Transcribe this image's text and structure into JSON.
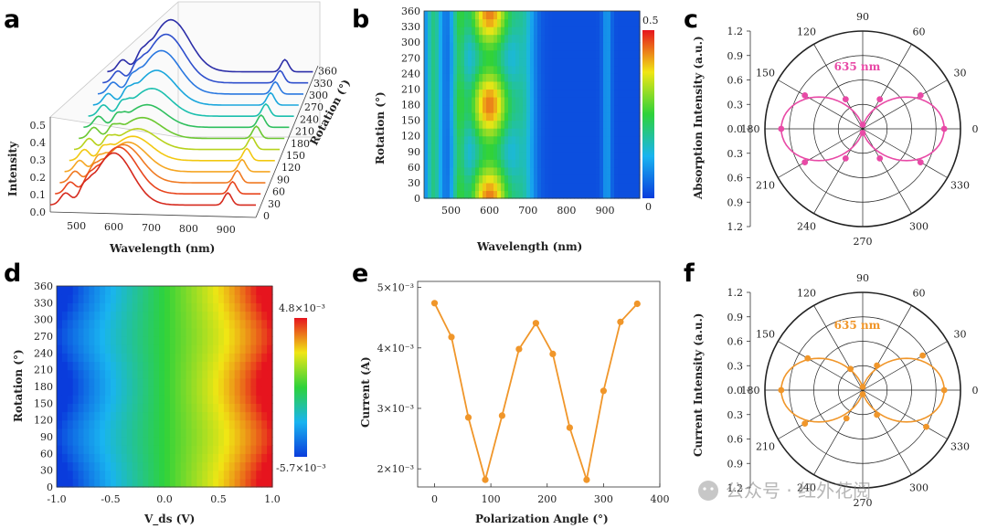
{
  "figure": {
    "panel_labels": [
      "a",
      "b",
      "c",
      "d",
      "e",
      "f"
    ],
    "watermark": "公众号 · 红外花阅"
  },
  "chart_data": [
    {
      "panel": "a",
      "type": "line",
      "xlabel": "Wavelength (nm)",
      "ylabel": "Intensity",
      "zlabel": "Rotation (°)",
      "xticks": [
        500,
        600,
        700,
        800,
        900
      ],
      "yticks": [
        "0.0",
        "0.1",
        "0.2",
        "0.3",
        "0.4",
        "0.5"
      ],
      "zticks": [
        0,
        30,
        60,
        90,
        120,
        150,
        180,
        210,
        240,
        270,
        300,
        330,
        360
      ],
      "xlim": [
        430,
        980
      ],
      "ylim": [
        0,
        0.5
      ],
      "series_rotations": [
        0,
        30,
        60,
        90,
        120,
        150,
        180,
        210,
        240,
        270,
        300,
        330,
        360
      ],
      "series_colors": [
        "#d62a1e",
        "#e8461e",
        "#f07a22",
        "#f5a623",
        "#f2c811",
        "#b7d21c",
        "#6cc832",
        "#2fbf5e",
        "#1bbfae",
        "#1aa6dc",
        "#2a78e0",
        "#2f4fcc",
        "#2c2ea8"
      ],
      "peak_intensity": [
        0.3,
        0.27,
        0.22,
        0.17,
        0.14,
        0.12,
        0.12,
        0.13,
        0.16,
        0.2,
        0.25,
        0.28,
        0.3
      ]
    },
    {
      "panel": "b",
      "type": "heatmap",
      "xlabel": "Wavelength (nm)",
      "ylabel": "Rotation (°)",
      "xticks": [
        500,
        600,
        700,
        800,
        900
      ],
      "yticks": [
        0,
        30,
        60,
        90,
        120,
        150,
        180,
        210,
        240,
        270,
        300,
        330,
        360
      ],
      "xlim": [
        430,
        990
      ],
      "ylim": [
        0,
        360
      ],
      "colorbar": {
        "min": "0",
        "max": "0.5"
      }
    },
    {
      "panel": "c",
      "type": "polar",
      "ylabel": "Absorption Intensity (a.u.)",
      "annotation": "635 nm",
      "angle_ticks": [
        0,
        30,
        60,
        90,
        120,
        150,
        180,
        210,
        240,
        270,
        300,
        330
      ],
      "radial_ticks": [
        "1.2",
        "0.9",
        "0.6",
        "0.3",
        "0.0",
        "0.3",
        "0.6",
        "0.9",
        "1.2"
      ],
      "rlim": [
        0,
        1.2
      ],
      "color": "#e84aa6",
      "angles": [
        0,
        30,
        60,
        90,
        120,
        150,
        180,
        210,
        240,
        270,
        300,
        330
      ],
      "values": [
        1.0,
        0.82,
        0.42,
        0.05,
        0.42,
        0.82,
        1.0,
        0.82,
        0.42,
        0.05,
        0.42,
        0.82
      ]
    },
    {
      "panel": "d",
      "type": "heatmap",
      "xlabel": "V_ds (V)",
      "ylabel": "Rotation (°)",
      "xticks": [
        "-1.0",
        "-0.5",
        "0.0",
        "0.5",
        "1.0"
      ],
      "yticks": [
        0,
        30,
        60,
        90,
        120,
        150,
        180,
        210,
        240,
        270,
        300,
        330,
        360
      ],
      "xlim": [
        -1.0,
        1.0
      ],
      "ylim": [
        0,
        360
      ],
      "colorbar": {
        "max": "4.8×10⁻³",
        "min": "-5.7×10⁻³"
      }
    },
    {
      "panel": "e",
      "type": "line",
      "xlabel": "Polarization Angle (°)",
      "ylabel": "Current (A)",
      "xticks": [
        0,
        100,
        200,
        300,
        400
      ],
      "yticks": [
        "2×10⁻³",
        "3×10⁻³",
        "4×10⁻³",
        "5×10⁻³"
      ],
      "xlim": [
        -30,
        400
      ],
      "ylim": [
        0.0017,
        0.0051
      ],
      "color": "#f0962a",
      "x": [
        0,
        30,
        60,
        90,
        120,
        150,
        180,
        210,
        240,
        270,
        300,
        330,
        360
      ],
      "y": [
        0.00474,
        0.00418,
        0.00285,
        0.00182,
        0.00288,
        0.00398,
        0.00441,
        0.0039,
        0.00268,
        0.00182,
        0.00329,
        0.00443,
        0.00473
      ]
    },
    {
      "panel": "f",
      "type": "polar",
      "ylabel": "Current Intensity (a.u.)",
      "annotation": "635 nm",
      "angle_ticks": [
        0,
        30,
        60,
        90,
        120,
        150,
        180,
        210,
        240,
        270,
        300,
        330
      ],
      "radial_ticks": [
        "1.2",
        "0.9",
        "0.6",
        "0.3",
        "0.0",
        "0.3",
        "0.6",
        "0.9",
        "1.2"
      ],
      "rlim": [
        0,
        1.2
      ],
      "color": "#f0962a",
      "angles": [
        0,
        30,
        60,
        90,
        120,
        150,
        180,
        210,
        240,
        270,
        300,
        330
      ],
      "values": [
        1.0,
        0.85,
        0.35,
        0.04,
        0.3,
        0.78,
        1.0,
        0.82,
        0.4,
        0.05,
        0.35,
        0.9
      ]
    }
  ]
}
